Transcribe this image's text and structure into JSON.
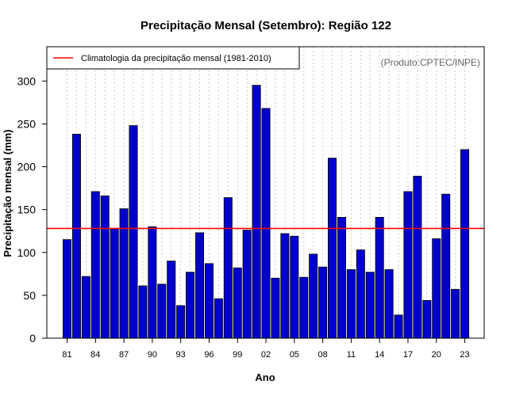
{
  "chart_data": {
    "type": "bar",
    "title": "Precipitação Mensal (Setembro): Região 122",
    "xlabel": "Ano",
    "ylabel": "Precipitação mensal (mm)",
    "ylim": [
      0,
      340
    ],
    "yticks": [
      0,
      50,
      100,
      150,
      200,
      250,
      300
    ],
    "categories": [
      "81",
      "82",
      "83",
      "84",
      "85",
      "86",
      "87",
      "88",
      "89",
      "90",
      "91",
      "92",
      "93",
      "94",
      "95",
      "96",
      "97",
      "98",
      "99",
      "00",
      "01",
      "02",
      "03",
      "04",
      "05",
      "06",
      "07",
      "08",
      "09",
      "10",
      "11",
      "12",
      "13",
      "14",
      "15",
      "16",
      "17",
      "18",
      "19",
      "20",
      "21",
      "22",
      "23"
    ],
    "xtick_labels": [
      "81",
      "84",
      "87",
      "90",
      "93",
      "96",
      "99",
      "02",
      "05",
      "08",
      "11",
      "14",
      "17",
      "20",
      "23"
    ],
    "values": [
      115,
      238,
      72,
      171,
      166,
      128,
      151,
      248,
      61,
      130,
      63,
      90,
      38,
      77,
      123,
      87,
      46,
      164,
      82,
      126,
      295,
      268,
      70,
      122,
      119,
      71,
      98,
      83,
      210,
      141,
      80,
      103,
      77,
      141,
      80,
      27,
      171,
      189,
      44,
      116,
      168,
      57,
      220
    ],
    "climatology": 128,
    "legend": "Climatologia da precipitação mensal (1981-2010)",
    "credit": "(Produto:CPTEC/INPE)",
    "colors": {
      "bar": "#0000cd",
      "bar_edge": "#000000",
      "climatology": "#ff0000",
      "grid": "#cccccc"
    }
  }
}
